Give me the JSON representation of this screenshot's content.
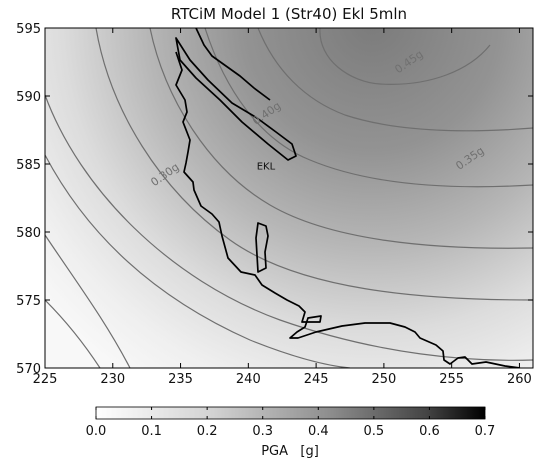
{
  "chart_data": {
    "type": "heatmap",
    "title": "RTCiM Model 1 (Str40) Ekl 5mln",
    "xlim": [
      225,
      261
    ],
    "ylim": [
      570,
      595
    ],
    "x_ticks": [
      "225",
      "230",
      "235",
      "240",
      "245",
      "250",
      "255",
      "260"
    ],
    "y_ticks": [
      "570",
      "575",
      "580",
      "585",
      "590",
      "595"
    ],
    "grayscale": true,
    "peak_location": {
      "x": 250,
      "y": 595.5
    },
    "contour_labels": [
      {
        "text": "0.40g",
        "x": 241.5,
        "y": 588.5
      },
      {
        "text": "0.35g",
        "x": 256.5,
        "y": 585.2
      },
      {
        "text": "0.30g",
        "x": 234.0,
        "y": 584.0
      },
      {
        "text": "0.45g",
        "x": 252.0,
        "y": 592.3
      }
    ],
    "point_labels": [
      {
        "text": "EKL",
        "x": 241.3,
        "y": 584.6
      }
    ],
    "colorbar": {
      "label": "PGA   [g]",
      "min": 0.0,
      "max": 0.7,
      "ticks": [
        "0.0",
        "0.1",
        "0.2",
        "0.3",
        "0.4",
        "0.5",
        "0.6",
        "0.7"
      ]
    }
  }
}
